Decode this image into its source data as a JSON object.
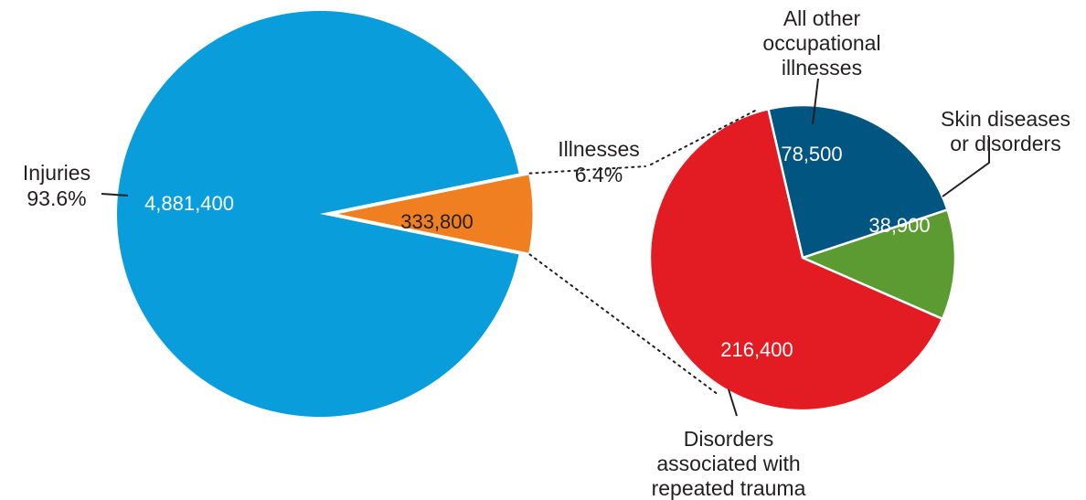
{
  "chart_data": [
    {
      "type": "pie",
      "slices": [
        {
          "label_lines": [
            "Injuries",
            "93.6%"
          ],
          "value": 4881400,
          "value_label": "4,881,400",
          "color": "#0a9ddb",
          "value_color": "#ffffff"
        },
        {
          "label_lines": [
            "Illnesses",
            "6.4%"
          ],
          "value": 333800,
          "value_label": "333,800",
          "color": "#f07f22",
          "value_color": "#231f20"
        }
      ]
    },
    {
      "type": "pie",
      "slices": [
        {
          "label_lines": [
            "All other",
            "occupational",
            "illnesses"
          ],
          "value": 78500,
          "value_label": "78,500",
          "color": "#005581",
          "value_color": "#ffffff"
        },
        {
          "label_lines": [
            "Skin diseases",
            "or disorders"
          ],
          "value": 38900,
          "value_label": "38,900",
          "color": "#5b9b32",
          "value_color": "#ffffff"
        },
        {
          "label_lines": [
            "Disorders",
            "associated with",
            "repeated trauma"
          ],
          "value": 216400,
          "value_label": "216,400",
          "color": "#e31b23",
          "value_color": "#ffffff"
        }
      ]
    }
  ]
}
